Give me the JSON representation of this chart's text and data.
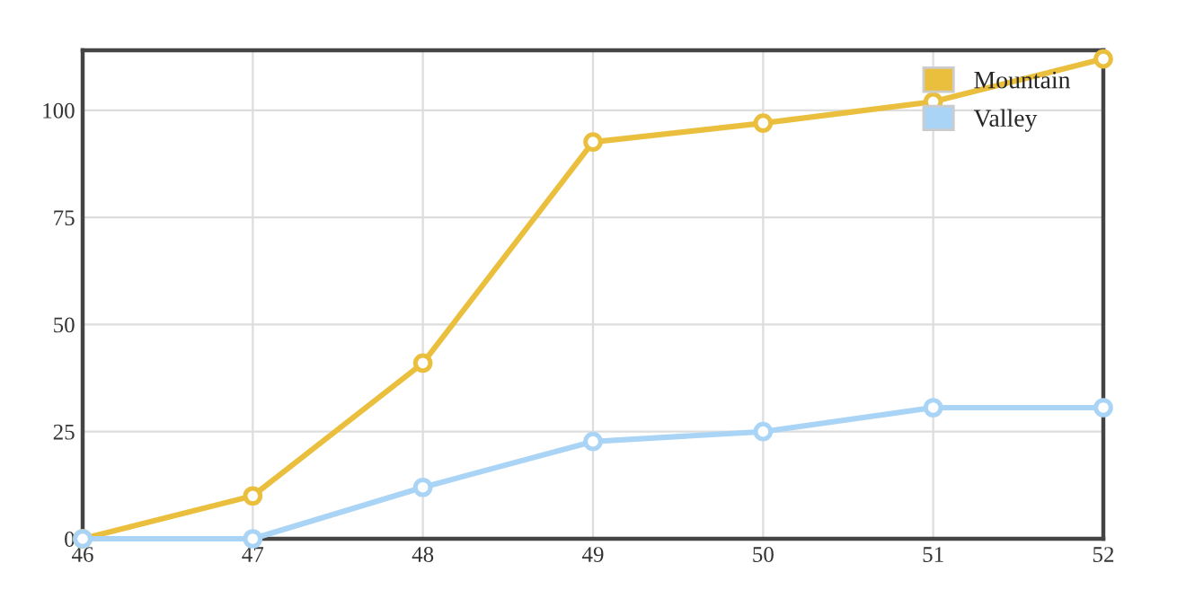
{
  "chart_data": {
    "type": "line",
    "x": [
      46,
      47,
      48,
      49,
      50,
      51,
      52
    ],
    "series": [
      {
        "name": "Mountain",
        "color": "#ebbf3e",
        "values": [
          0,
          10,
          41,
          92.6,
          97,
          102,
          112
        ]
      },
      {
        "name": "Valley",
        "color": "#aad4f5",
        "values": [
          0,
          0,
          12,
          22.7,
          25,
          30.6,
          30.6
        ]
      }
    ],
    "xlim": [
      46,
      52
    ],
    "xticks": [
      46,
      47,
      48,
      49,
      50,
      51,
      52
    ],
    "ylim": [
      0,
      114
    ],
    "yticks": [
      0,
      25,
      50,
      75,
      100
    ],
    "grid": true,
    "legend": "top right",
    "marker": "circle"
  }
}
